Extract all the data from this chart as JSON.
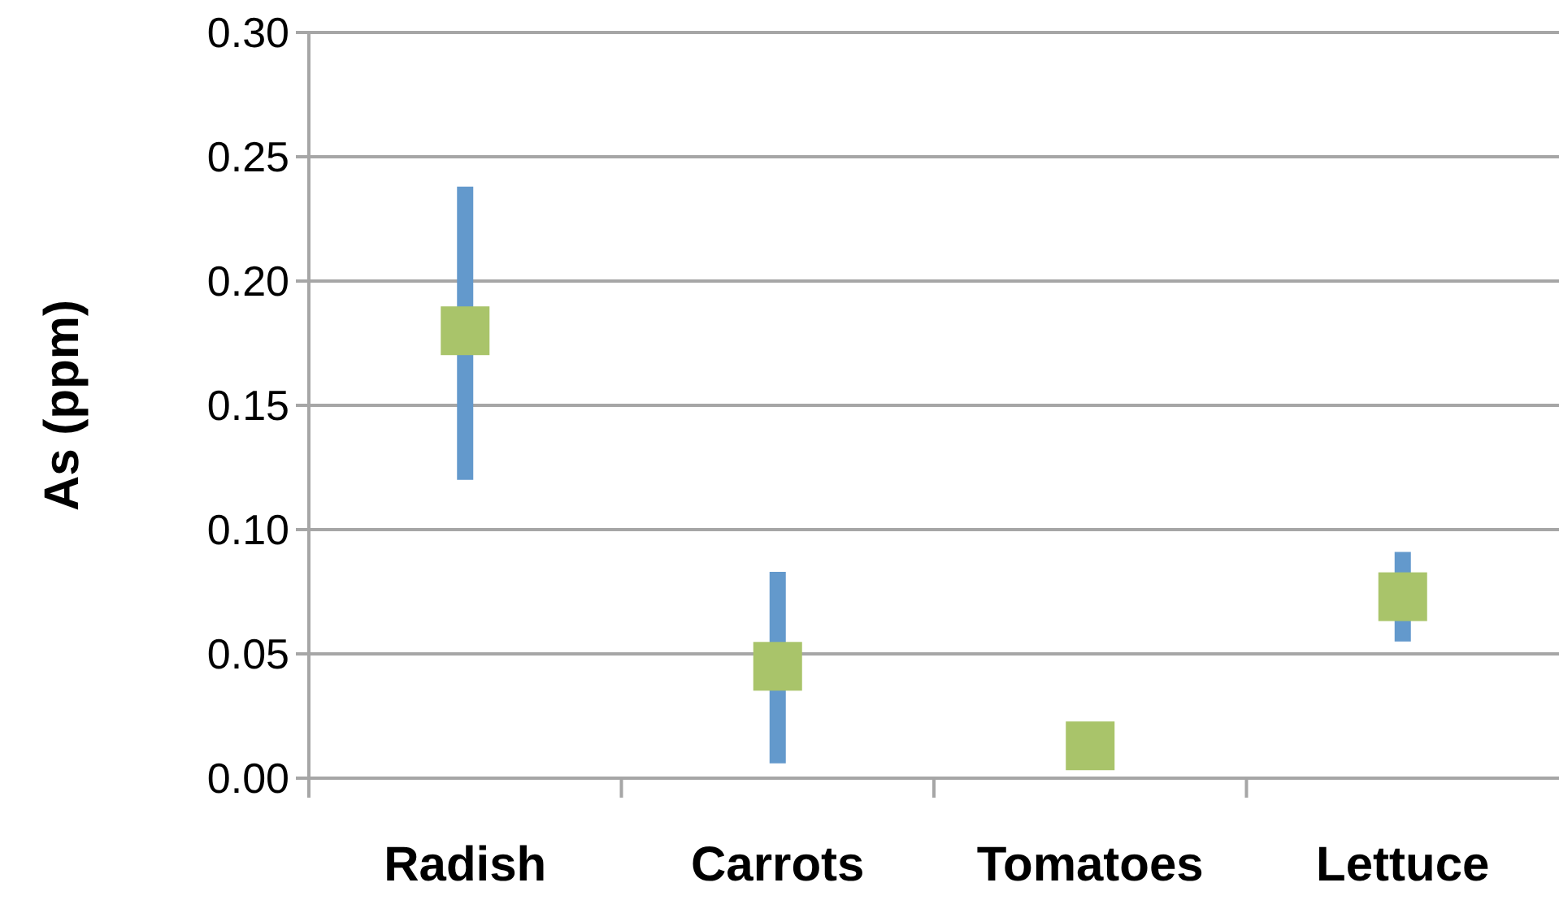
{
  "chart_data": {
    "type": "scatter",
    "ylabel": "As (ppm)",
    "categories": [
      "Radish",
      "Carrots",
      "Tomatoes",
      "Lettuce"
    ],
    "series": [
      {
        "color": "#a9c46a",
        "values": [
          0.18,
          0.045,
          0.013,
          0.073
        ],
        "errors": [
          [
            0.12,
            0.238
          ],
          [
            0.006,
            0.083
          ],
          null,
          [
            0.055,
            0.091
          ]
        ]
      }
    ],
    "ylim": [
      0,
      0.3
    ],
    "yticks": [
      {
        "value": 0,
        "label": "0.00"
      },
      {
        "value": 0.05,
        "label": "0.05"
      },
      {
        "value": 0.1,
        "label": "0.10"
      },
      {
        "value": 0.15,
        "label": "0.15"
      },
      {
        "value": 0.2,
        "label": "0.20"
      },
      {
        "value": 0.25,
        "label": "0.25"
      },
      {
        "value": 0.3,
        "label": "0.30"
      }
    ],
    "grid": "y",
    "marker": "square"
  }
}
